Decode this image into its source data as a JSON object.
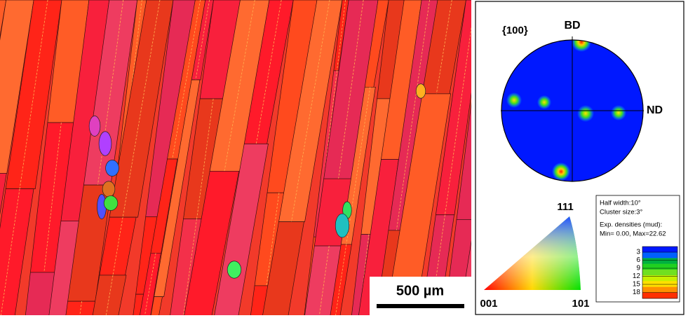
{
  "ebsd_map": {
    "scale_bar": "500 µm"
  },
  "pole_figure": {
    "title": "{100}",
    "top_axis": "BD",
    "right_axis": "ND"
  },
  "ipf_triangle": {
    "top": "111",
    "left": "001",
    "right": "101"
  },
  "legend": {
    "lines": [
      "Half width:10°",
      "Cluster size:3°",
      "Exp. densities (mud):",
      "Min= 0.00, Max=22.62"
    ],
    "ticks": [
      3,
      6,
      9,
      12,
      15,
      18
    ]
  }
}
